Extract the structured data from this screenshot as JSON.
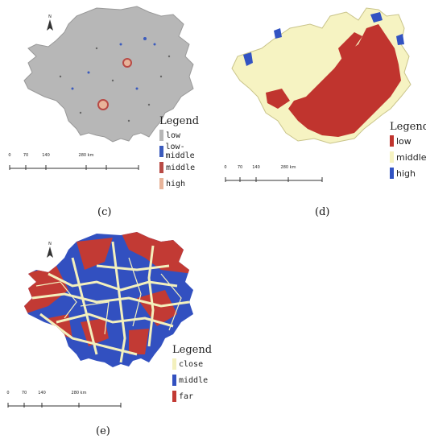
{
  "panels": [
    {
      "caption": "(c)",
      "north": "N",
      "legend": {
        "title": "Legend",
        "items": [
          {
            "label": "low",
            "color": "#b7b7b7"
          },
          {
            "label": "low-middle",
            "color": "#3b5bbd"
          },
          {
            "label": "middle",
            "color": "#b84a45"
          },
          {
            "label": "high",
            "color": "#e8b49a"
          }
        ]
      },
      "scale": {
        "ticks": [
          "0",
          "70",
          "140",
          "280 km"
        ]
      }
    },
    {
      "caption": "(d)",
      "legend": {
        "title": "Legend",
        "items": [
          {
            "label": "low",
            "color": "#c0342e"
          },
          {
            "label": "middle",
            "color": "#f6f3c2"
          },
          {
            "label": "high",
            "color": "#3253c2"
          }
        ]
      },
      "scale": {
        "ticks": [
          "0",
          "70",
          "140",
          "280 km"
        ]
      }
    },
    {
      "caption": "(e)",
      "north": "N",
      "legend": {
        "title": "Legend",
        "items": [
          {
            "label": "close",
            "color": "#f3f0bd"
          },
          {
            "label": "middle",
            "color": "#3250c0"
          },
          {
            "label": "far",
            "color": "#c23a34"
          }
        ]
      },
      "scale": {
        "ticks": [
          "0",
          "70",
          "140",
          "280 km"
        ]
      }
    }
  ]
}
